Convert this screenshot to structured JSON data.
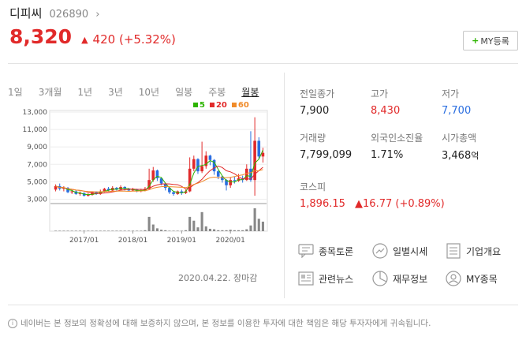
{
  "header": {
    "name": "디피씨",
    "code": "026890",
    "chevron_icon": "chevron-right-icon"
  },
  "price": {
    "current": "8,320",
    "change": "420",
    "change_pct": "(+5.32%)",
    "direction_icon": "triangle-up-icon",
    "color": "#e12a2a"
  },
  "my_button": {
    "label": "MY등록"
  },
  "chart": {
    "tabs": [
      "1일",
      "3개월",
      "1년",
      "3년",
      "10년",
      "일봉",
      "주봉",
      "월봉"
    ],
    "active_tab": "월봉",
    "legend": [
      {
        "label": "5",
        "color": "#2db400"
      },
      {
        "label": "20",
        "color": "#e12a2a"
      },
      {
        "label": "60",
        "color": "#f08b2a"
      }
    ],
    "date": "2020.04.22. 장마감"
  },
  "chart_data": {
    "type": "candlestick",
    "y_ticks": [
      "13,000",
      "11,000",
      "9,000",
      "7,000",
      "5,000",
      "3,000"
    ],
    "ylim": [
      2500,
      13000
    ],
    "x_ticks": [
      "2017/01",
      "2018/01",
      "2019/01",
      "2020/01"
    ],
    "series_names": [
      "5",
      "20",
      "60"
    ],
    "candles": [
      [
        4100,
        4500,
        4700,
        3900
      ],
      [
        4500,
        4200,
        4800,
        4000
      ],
      [
        4200,
        4300,
        4500,
        3900
      ],
      [
        4300,
        3800,
        4400,
        3700
      ],
      [
        3800,
        3900,
        4100,
        3600
      ],
      [
        3900,
        3600,
        4000,
        3500
      ],
      [
        3600,
        3700,
        3900,
        3400
      ],
      [
        3700,
        3400,
        3800,
        3300
      ],
      [
        3400,
        3500,
        3700,
        3300
      ],
      [
        3500,
        3800,
        3900,
        3400
      ],
      [
        3800,
        3600,
        3900,
        3500
      ],
      [
        3600,
        3900,
        4100,
        3500
      ],
      [
        3900,
        4200,
        4300,
        3800
      ],
      [
        4200,
        4000,
        4400,
        3900
      ],
      [
        4000,
        4300,
        4500,
        3900
      ],
      [
        4300,
        4100,
        4400,
        4000
      ],
      [
        4100,
        4400,
        4600,
        4000
      ],
      [
        4400,
        4200,
        4500,
        4000
      ],
      [
        4200,
        4000,
        4300,
        3900
      ],
      [
        4000,
        4100,
        4300,
        3900
      ],
      [
        4100,
        3900,
        4200,
        3800
      ],
      [
        3900,
        4000,
        4200,
        3800
      ],
      [
        4000,
        4200,
        4400,
        3900
      ],
      [
        4200,
        5200,
        6500,
        4100
      ],
      [
        5200,
        6300,
        6700,
        5000
      ],
      [
        6300,
        5400,
        6400,
        5100
      ],
      [
        5400,
        4800,
        5500,
        4600
      ],
      [
        4800,
        4300,
        4900,
        4000
      ],
      [
        4300,
        3800,
        4400,
        3600
      ],
      [
        3800,
        3600,
        3900,
        3400
      ],
      [
        3600,
        3900,
        4000,
        3500
      ],
      [
        3900,
        3700,
        4100,
        3500
      ],
      [
        3700,
        3900,
        4100,
        3600
      ],
      [
        3900,
        6500,
        7800,
        3800
      ],
      [
        6500,
        7600,
        8000,
        6200
      ],
      [
        7600,
        6200,
        7700,
        5900
      ],
      [
        6200,
        6800,
        9600,
        6000
      ],
      [
        6800,
        8000,
        8500,
        6500
      ],
      [
        8000,
        7500,
        8100,
        6900
      ],
      [
        7500,
        6200,
        7600,
        5800
      ],
      [
        6200,
        5600,
        6300,
        5300
      ],
      [
        5600,
        5200,
        5700,
        4900
      ],
      [
        5200,
        4600,
        5300,
        4000
      ],
      [
        4600,
        5200,
        5500,
        4300
      ],
      [
        5200,
        5100,
        5600,
        4800
      ],
      [
        5100,
        5400,
        5900,
        5000
      ],
      [
        5400,
        5200,
        5700,
        4900
      ],
      [
        5200,
        6500,
        7000,
        5100
      ],
      [
        6500,
        5200,
        10800,
        5000
      ],
      [
        5200,
        9700,
        12400,
        3400
      ],
      [
        9700,
        7900,
        10100,
        7600
      ],
      [
        7900,
        8320,
        8900,
        7200
      ]
    ],
    "volume": [
      1,
      1,
      1,
      1,
      1,
      1,
      1,
      1,
      1,
      1,
      1,
      1,
      1,
      1,
      1,
      1,
      1,
      1,
      1,
      1,
      1,
      1,
      2,
      30,
      14,
      6,
      3,
      2,
      1,
      1,
      1,
      1,
      2,
      30,
      22,
      8,
      40,
      10,
      5,
      4,
      2,
      2,
      2,
      3,
      2,
      2,
      2,
      4,
      12,
      48,
      26,
      20
    ]
  },
  "stats": {
    "prev_close": {
      "label": "전일종가",
      "value": "7,900"
    },
    "high": {
      "label": "고가",
      "value": "8,430"
    },
    "low": {
      "label": "저가",
      "value": "7,700"
    },
    "volume": {
      "label": "거래량",
      "value": "7,799,099"
    },
    "foreign": {
      "label": "외국인소진율",
      "value": "1.71%"
    },
    "mcap": {
      "label": "시가총액",
      "value": "3,468",
      "unit": "억"
    },
    "index": {
      "label": "코스피",
      "value": "1,896.15",
      "change": "16.77",
      "change_pct": "(+0.89%)"
    }
  },
  "links": [
    {
      "label": "종목토론",
      "icon": "chat-icon"
    },
    {
      "label": "일별시세",
      "icon": "trend-icon"
    },
    {
      "label": "기업개요",
      "icon": "list-icon"
    },
    {
      "label": "관련뉴스",
      "icon": "news-icon"
    },
    {
      "label": "재무정보",
      "icon": "pie-icon"
    },
    {
      "label": "MY종목",
      "icon": "user-icon"
    }
  ],
  "footer": {
    "text": "네이버는 본 정보의 정확성에 대해 보증하지 않으며, 본 정보를 이용한 투자에 대한 책임은 해당 투자자에게 귀속됩니다.",
    "icon": "info-icon"
  }
}
